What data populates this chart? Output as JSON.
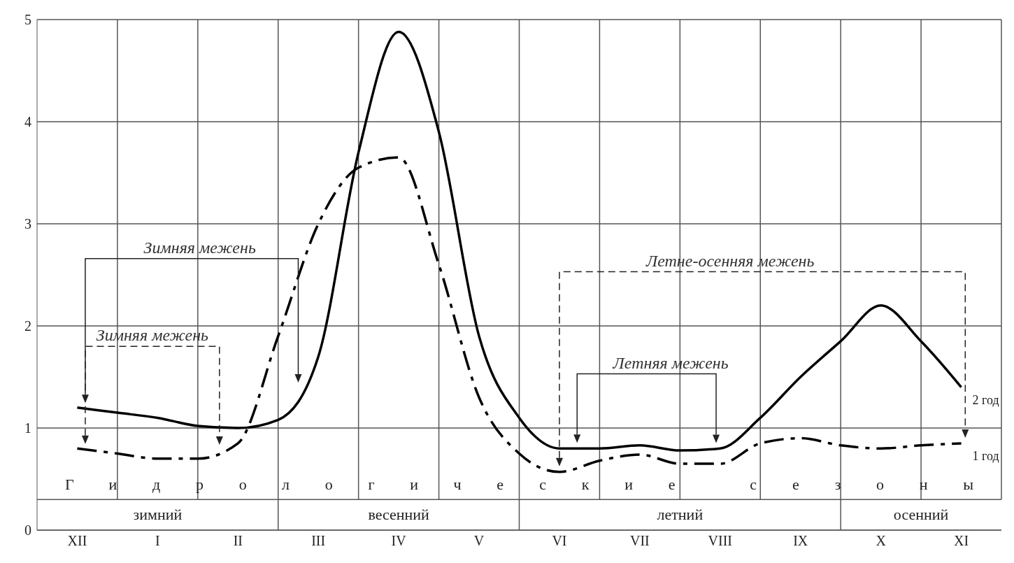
{
  "chart_data": {
    "type": "line",
    "ylim": [
      0,
      5
    ],
    "yticks": [
      0,
      1,
      2,
      3,
      4,
      5
    ],
    "grid": true,
    "categories": [
      "XII",
      null,
      "I",
      null,
      "II",
      null,
      "III",
      null,
      "IV",
      null,
      "V",
      null,
      "VI",
      null,
      "VII",
      null,
      "VIII",
      null,
      "IX",
      null,
      "X",
      null,
      "XI",
      null
    ],
    "series": [
      {
        "name": "2 год",
        "color": "#000000",
        "line_style": "solid",
        "values": [
          1.2,
          1.15,
          1.1,
          1.02,
          1.0,
          1.08,
          1.7,
          3.7,
          4.88,
          3.9,
          1.9,
          1.1,
          0.8,
          0.8,
          0.83,
          0.78,
          0.8,
          1.1,
          1.5,
          1.85,
          2.2,
          1.85,
          1.4,
          null
        ]
      },
      {
        "name": "1 год",
        "color": "#000000",
        "line_style": "dashed",
        "values": [
          0.8,
          0.75,
          0.7,
          0.7,
          0.85,
          1.9,
          3.0,
          3.55,
          3.65,
          2.6,
          1.3,
          0.75,
          0.57,
          0.68,
          0.74,
          0.65,
          0.65,
          0.85,
          0.9,
          0.83,
          0.8,
          0.83,
          0.85,
          null
        ]
      }
    ],
    "annotations": [
      "Зимняя межень",
      "Зимняя межень",
      "Летне-осенняя межень",
      "Летняя межень",
      "Гидрологические сезоны",
      "зимний",
      "весенний",
      "летний",
      "осенний"
    ]
  }
}
